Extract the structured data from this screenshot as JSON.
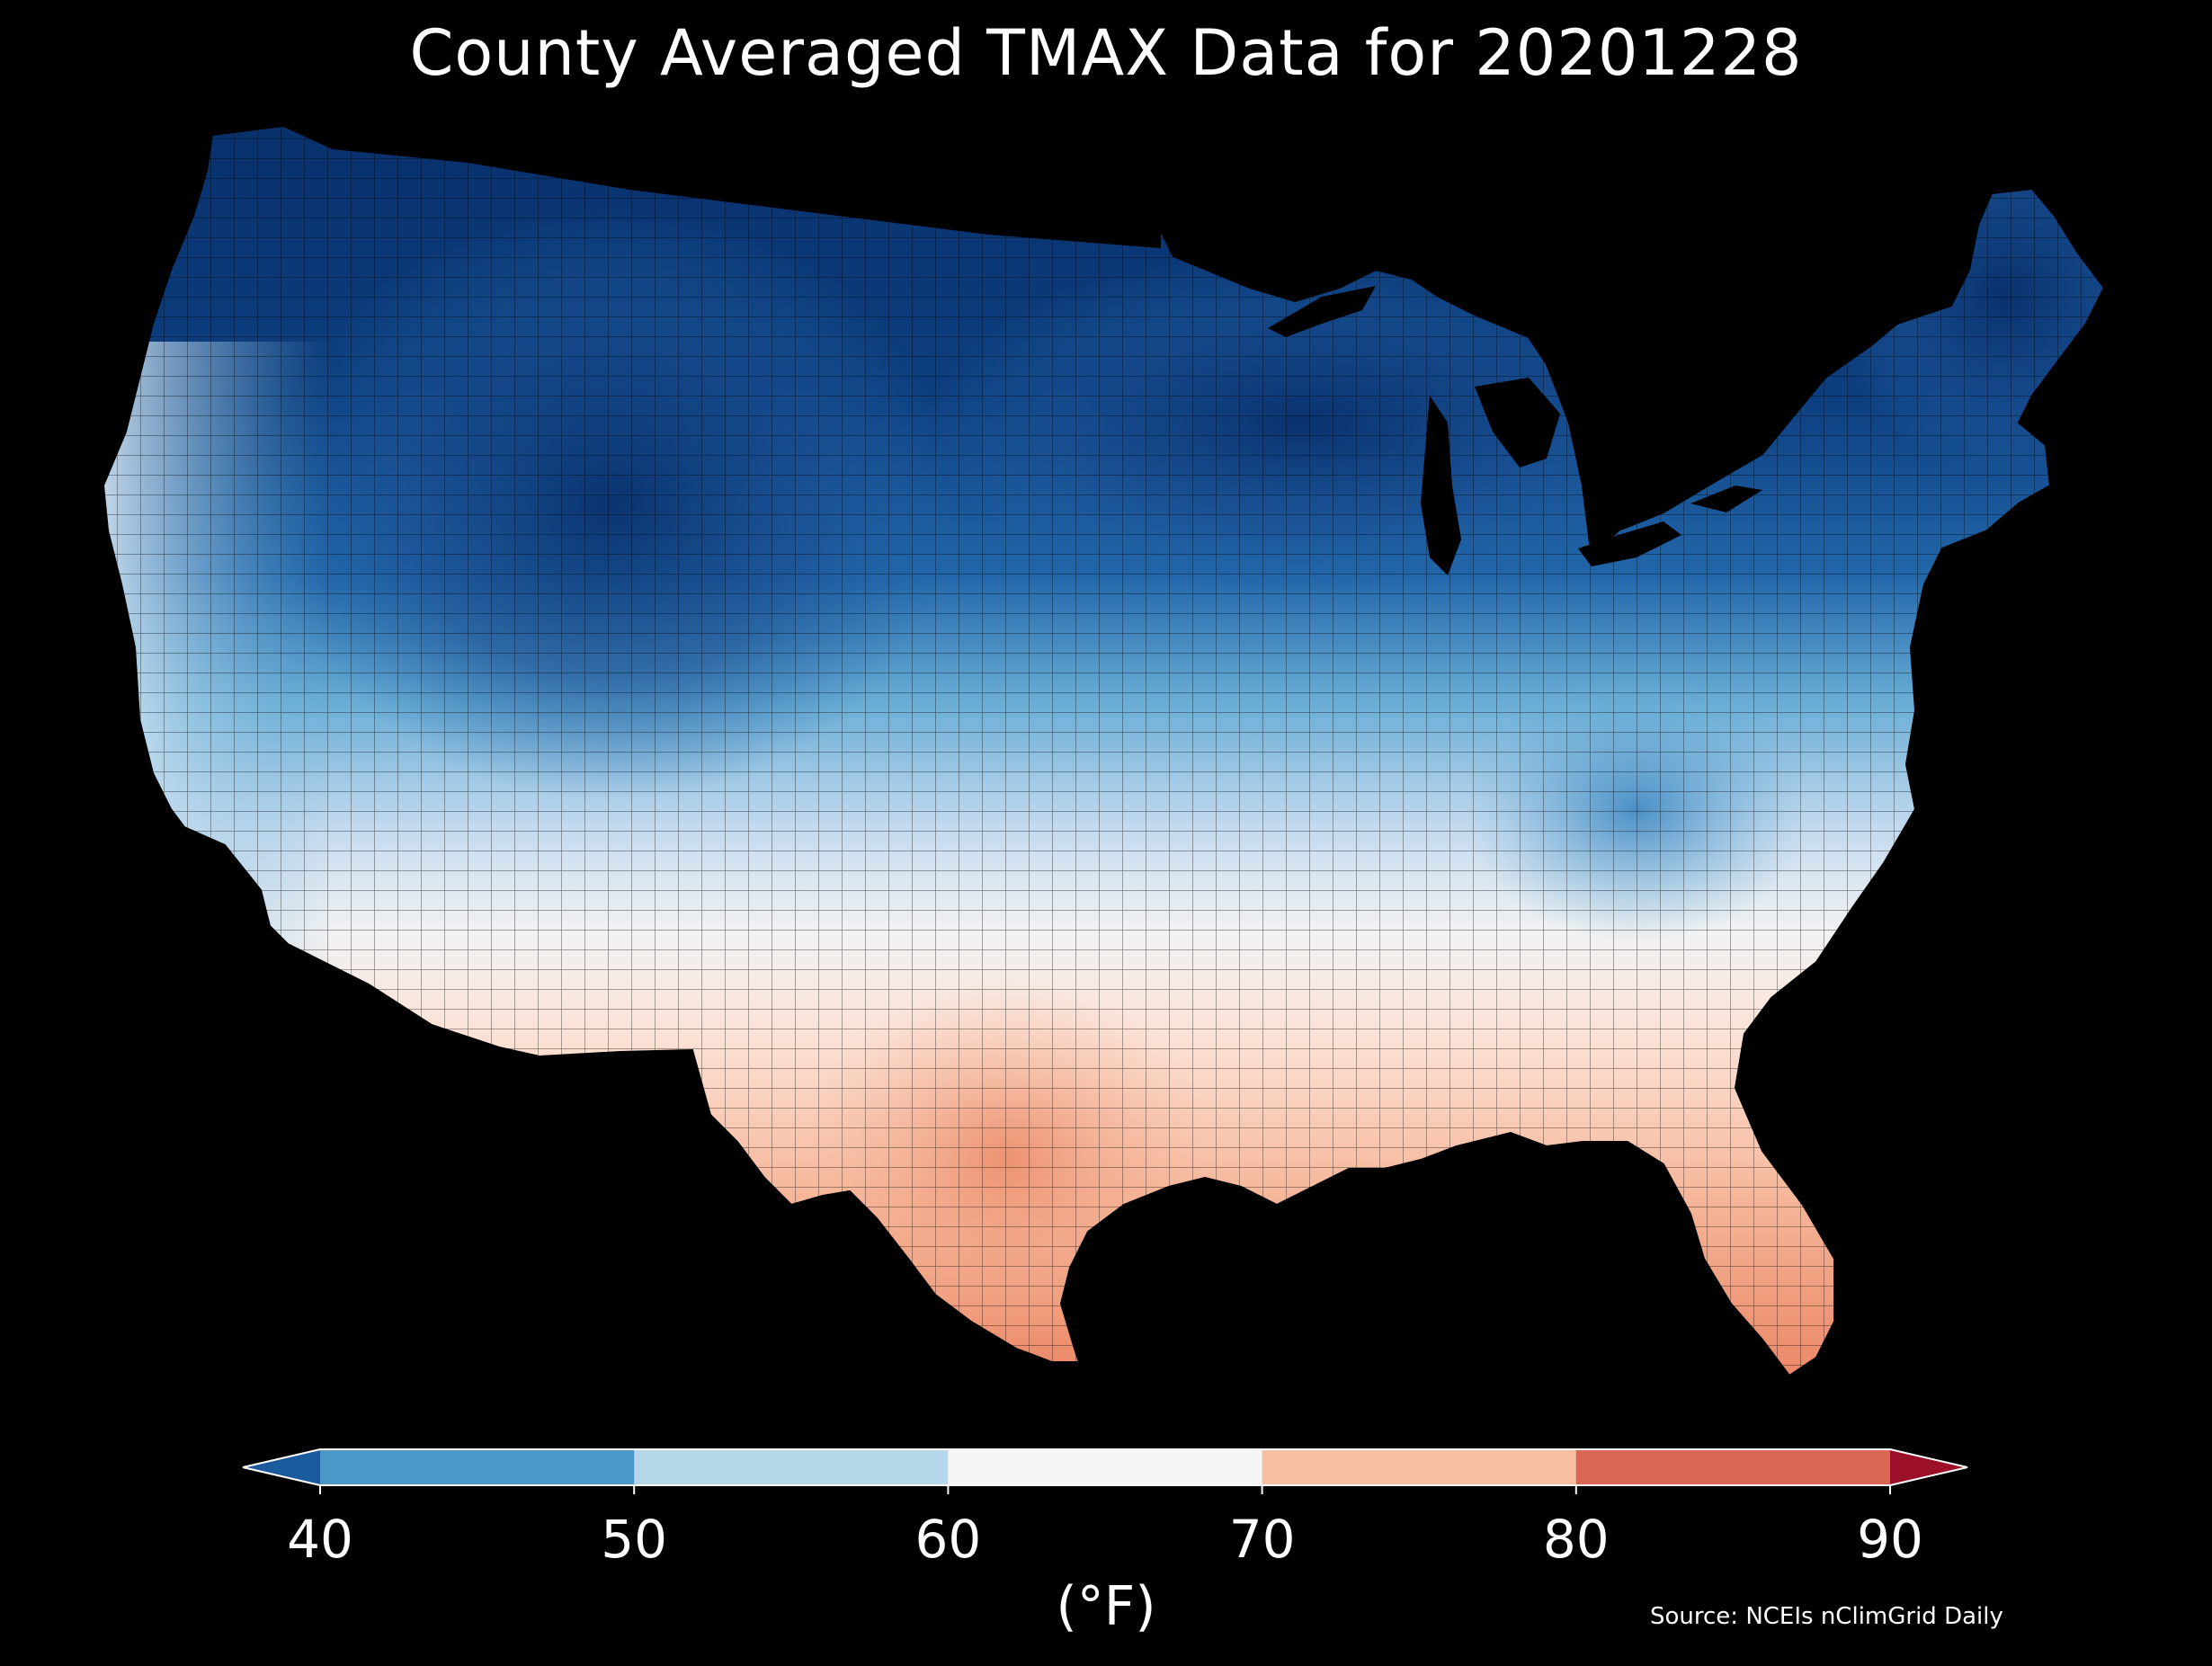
{
  "title": "County Averaged TMAX Data for 20201228",
  "colorbar": {
    "ticks": [
      "40",
      "50",
      "60",
      "70",
      "80",
      "90"
    ],
    "bins": [
      {
        "range": "<40",
        "color": "#1c5a9e"
      },
      {
        "range": "40-50",
        "color": "#4b97c8"
      },
      {
        "range": "50-60",
        "color": "#b6d6ea"
      },
      {
        "range": "60-70",
        "color": "#f5f5f5"
      },
      {
        "range": "70-80",
        "color": "#f7c0a4"
      },
      {
        "range": "80-90",
        "color": "#dc6654"
      },
      {
        "range": ">90",
        "color": "#9b1028"
      }
    ],
    "unit": "(°F)"
  },
  "source": "Source: NCEIs nClimGrid Daily",
  "colors": {
    "background": "#000000",
    "coldest": "#08306b",
    "warmest": "#ef8a66"
  }
}
